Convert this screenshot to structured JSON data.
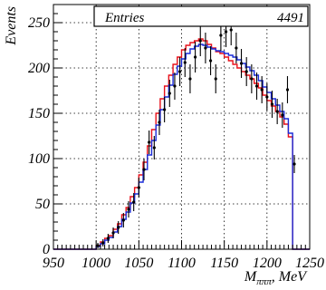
{
  "chart_data": {
    "type": "histogram",
    "xlabel": "M",
    "xlabel_subscript": "πππ",
    "xlabel_unit": ", MeV",
    "ylabel": "Events",
    "xlim": [
      950,
      1250
    ],
    "ylim": [
      0,
      270
    ],
    "x_ticks": [
      950,
      1000,
      1050,
      1100,
      1150,
      1200,
      1250
    ],
    "x_tick_labels": [
      "950",
      "1000",
      "1050",
      "1100",
      "1150",
      "1200",
      "1250"
    ],
    "y_ticks": [
      0,
      50,
      100,
      150,
      200,
      250
    ],
    "y_tick_labels": [
      "0",
      "50",
      "100",
      "150",
      "200",
      "250"
    ],
    "grid": true,
    "stats_box": {
      "label": "Entries",
      "value": "4491"
    },
    "colors": {
      "red": "#e8101a",
      "blue": "#1a2bd8",
      "data": "#000000"
    },
    "bin_width": 5,
    "series": [
      {
        "style": "step",
        "color": "red",
        "x_edges": [
          950,
          955,
          960,
          965,
          970,
          975,
          980,
          985,
          990,
          995,
          1000,
          1005,
          1010,
          1015,
          1020,
          1025,
          1030,
          1035,
          1040,
          1045,
          1050,
          1055,
          1060,
          1065,
          1070,
          1075,
          1080,
          1085,
          1090,
          1095,
          1100,
          1105,
          1110,
          1115,
          1120,
          1125,
          1130,
          1135,
          1140,
          1145,
          1150,
          1155,
          1160,
          1165,
          1170,
          1175,
          1180,
          1185,
          1190,
          1195,
          1200,
          1205,
          1210,
          1215,
          1220,
          1225,
          1230,
          1235,
          1240,
          1245
        ],
        "values": [
          0,
          0,
          0,
          0,
          0,
          0,
          0,
          0,
          0,
          0,
          4,
          8,
          12,
          15,
          22,
          28,
          38,
          46,
          58,
          68,
          82,
          96,
          114,
          132,
          150,
          166,
          180,
          192,
          204,
          212,
          220,
          225,
          228,
          230,
          232,
          230,
          226,
          222,
          218,
          216,
          212,
          208,
          204,
          200,
          196,
          192,
          188,
          183,
          178,
          170,
          164,
          158,
          152,
          146,
          138,
          124,
          0,
          0,
          0,
          0
        ]
      },
      {
        "style": "step",
        "color": "blue",
        "x_edges": [
          950,
          955,
          960,
          965,
          970,
          975,
          980,
          985,
          990,
          995,
          1000,
          1005,
          1010,
          1015,
          1020,
          1025,
          1030,
          1035,
          1040,
          1045,
          1050,
          1055,
          1060,
          1065,
          1070,
          1075,
          1080,
          1085,
          1090,
          1095,
          1100,
          1105,
          1110,
          1115,
          1120,
          1125,
          1130,
          1135,
          1140,
          1145,
          1150,
          1155,
          1160,
          1165,
          1170,
          1175,
          1180,
          1185,
          1190,
          1195,
          1200,
          1205,
          1210,
          1215,
          1220,
          1225,
          1230,
          1235,
          1240,
          1245
        ],
        "values": [
          0,
          0,
          0,
          0,
          0,
          0,
          0,
          0,
          0,
          0,
          3,
          6,
          10,
          13,
          19,
          25,
          33,
          41,
          51,
          61,
          74,
          88,
          104,
          120,
          137,
          154,
          168,
          181,
          193,
          202,
          210,
          216,
          221,
          224,
          226,
          225,
          223,
          221,
          219,
          218,
          216,
          214,
          212,
          209,
          205,
          201,
          197,
          192,
          186,
          179,
          173,
          166,
          159,
          152,
          144,
          128,
          0,
          0,
          0,
          0
        ]
      },
      {
        "style": "errorbars",
        "color": "data",
        "points": [
          {
            "x": 1002,
            "y": 4,
            "e": 3
          },
          {
            "x": 1008,
            "y": 7,
            "e": 4
          },
          {
            "x": 1014,
            "y": 12,
            "e": 5
          },
          {
            "x": 1020,
            "y": 18,
            "e": 6
          },
          {
            "x": 1026,
            "y": 24,
            "e": 7
          },
          {
            "x": 1032,
            "y": 32,
            "e": 8
          },
          {
            "x": 1038,
            "y": 44,
            "e": 9
          },
          {
            "x": 1044,
            "y": 52,
            "e": 10
          },
          {
            "x": 1050,
            "y": 68,
            "e": 11
          },
          {
            "x": 1056,
            "y": 88,
            "e": 12
          },
          {
            "x": 1062,
            "y": 118,
            "e": 13
          },
          {
            "x": 1068,
            "y": 112,
            "e": 13
          },
          {
            "x": 1074,
            "y": 140,
            "e": 14
          },
          {
            "x": 1080,
            "y": 154,
            "e": 14
          },
          {
            "x": 1086,
            "y": 172,
            "e": 15
          },
          {
            "x": 1092,
            "y": 180,
            "e": 15
          },
          {
            "x": 1098,
            "y": 196,
            "e": 16
          },
          {
            "x": 1104,
            "y": 206,
            "e": 16
          },
          {
            "x": 1110,
            "y": 188,
            "e": 16
          },
          {
            "x": 1116,
            "y": 212,
            "e": 17
          },
          {
            "x": 1122,
            "y": 230,
            "e": 17
          },
          {
            "x": 1128,
            "y": 222,
            "e": 17
          },
          {
            "x": 1134,
            "y": 208,
            "e": 16
          },
          {
            "x": 1140,
            "y": 188,
            "e": 16
          },
          {
            "x": 1146,
            "y": 236,
            "e": 17
          },
          {
            "x": 1152,
            "y": 240,
            "e": 17
          },
          {
            "x": 1158,
            "y": 242,
            "e": 17
          },
          {
            "x": 1164,
            "y": 222,
            "e": 17
          },
          {
            "x": 1170,
            "y": 205,
            "e": 16
          },
          {
            "x": 1176,
            "y": 196,
            "e": 16
          },
          {
            "x": 1182,
            "y": 188,
            "e": 16
          },
          {
            "x": 1188,
            "y": 180,
            "e": 15
          },
          {
            "x": 1194,
            "y": 176,
            "e": 15
          },
          {
            "x": 1200,
            "y": 168,
            "e": 15
          },
          {
            "x": 1206,
            "y": 160,
            "e": 15
          },
          {
            "x": 1212,
            "y": 152,
            "e": 14
          },
          {
            "x": 1218,
            "y": 148,
            "e": 14
          },
          {
            "x": 1224,
            "y": 176,
            "e": 15
          },
          {
            "x": 1232,
            "y": 94,
            "e": 10
          }
        ]
      }
    ]
  }
}
